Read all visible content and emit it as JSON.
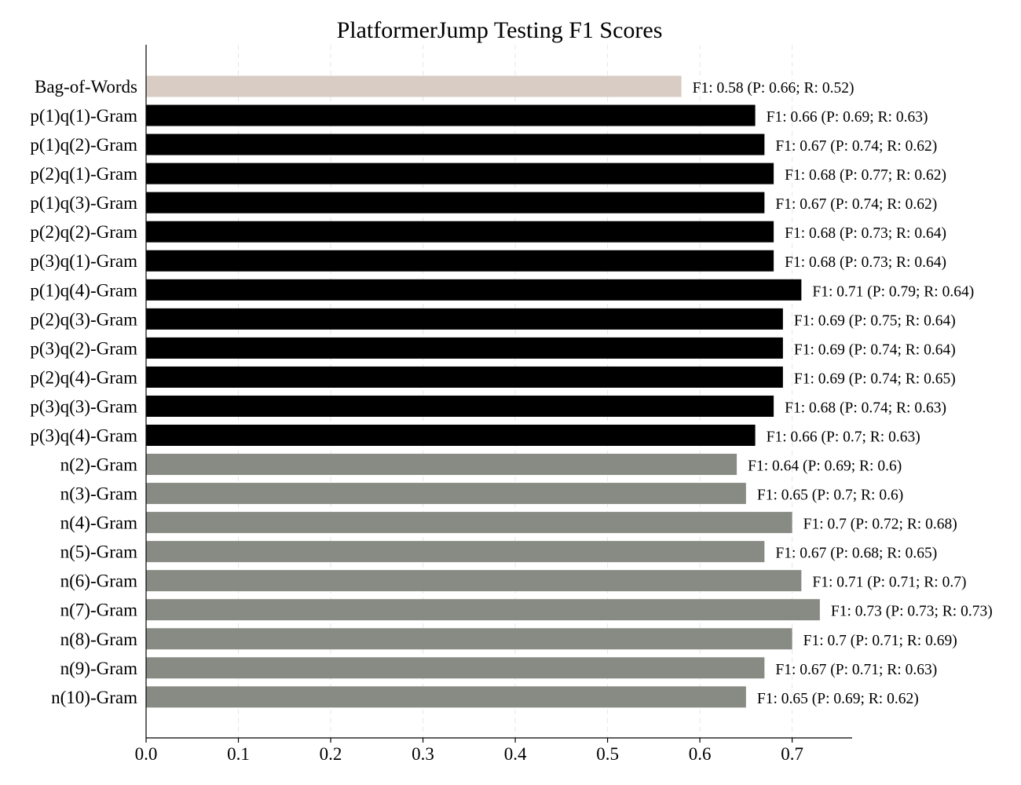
{
  "chart_data": {
    "type": "bar",
    "orientation": "horizontal",
    "title": "PlatformerJump Testing F1 Scores",
    "xlabel": "",
    "ylabel": "",
    "xlim": [
      0,
      0.765
    ],
    "xticks": [
      "0.0",
      "0.1",
      "0.2",
      "0.3",
      "0.4",
      "0.5",
      "0.6",
      "0.7"
    ],
    "grid": "vertical dashed",
    "legend": "none",
    "colors": {
      "bag_of_words": "#d8ccc4",
      "pq_gram": "#000000",
      "n_gram": "#878b83"
    },
    "bars": [
      {
        "category": "Bag-of-Words",
        "value": 0.58,
        "group": "bag_of_words",
        "label": "F1: 0.58 (P: 0.66; R: 0.52)"
      },
      {
        "category": "p(1)q(1)-Gram",
        "value": 0.66,
        "group": "pq_gram",
        "label": "F1: 0.66 (P: 0.69; R: 0.63)"
      },
      {
        "category": "p(1)q(2)-Gram",
        "value": 0.67,
        "group": "pq_gram",
        "label": "F1: 0.67 (P: 0.74; R: 0.62)"
      },
      {
        "category": "p(2)q(1)-Gram",
        "value": 0.68,
        "group": "pq_gram",
        "label": "F1: 0.68 (P: 0.77; R: 0.62)"
      },
      {
        "category": "p(1)q(3)-Gram",
        "value": 0.67,
        "group": "pq_gram",
        "label": "F1: 0.67 (P: 0.74; R: 0.62)"
      },
      {
        "category": "p(2)q(2)-Gram",
        "value": 0.68,
        "group": "pq_gram",
        "label": "F1: 0.68 (P: 0.73; R: 0.64)"
      },
      {
        "category": "p(3)q(1)-Gram",
        "value": 0.68,
        "group": "pq_gram",
        "label": "F1: 0.68 (P: 0.73; R: 0.64)"
      },
      {
        "category": "p(1)q(4)-Gram",
        "value": 0.71,
        "group": "pq_gram",
        "label": "F1: 0.71 (P: 0.79; R: 0.64)"
      },
      {
        "category": "p(2)q(3)-Gram",
        "value": 0.69,
        "group": "pq_gram",
        "label": "F1: 0.69 (P: 0.75; R: 0.64)"
      },
      {
        "category": "p(3)q(2)-Gram",
        "value": 0.69,
        "group": "pq_gram",
        "label": "F1: 0.69 (P: 0.74; R: 0.64)"
      },
      {
        "category": "p(2)q(4)-Gram",
        "value": 0.69,
        "group": "pq_gram",
        "label": "F1: 0.69 (P: 0.74; R: 0.65)"
      },
      {
        "category": "p(3)q(3)-Gram",
        "value": 0.68,
        "group": "pq_gram",
        "label": "F1: 0.68 (P: 0.74; R: 0.63)"
      },
      {
        "category": "p(3)q(4)-Gram",
        "value": 0.66,
        "group": "pq_gram",
        "label": "F1: 0.66 (P: 0.7; R: 0.63)"
      },
      {
        "category": "n(2)-Gram",
        "value": 0.64,
        "group": "n_gram",
        "label": "F1: 0.64 (P: 0.69; R: 0.6)"
      },
      {
        "category": "n(3)-Gram",
        "value": 0.65,
        "group": "n_gram",
        "label": "F1: 0.65 (P: 0.7; R: 0.6)"
      },
      {
        "category": "n(4)-Gram",
        "value": 0.7,
        "group": "n_gram",
        "label": "F1: 0.7 (P: 0.72; R: 0.68)"
      },
      {
        "category": "n(5)-Gram",
        "value": 0.67,
        "group": "n_gram",
        "label": "F1: 0.67 (P: 0.68; R: 0.65)"
      },
      {
        "category": "n(6)-Gram",
        "value": 0.71,
        "group": "n_gram",
        "label": "F1: 0.71 (P: 0.71; R: 0.7)"
      },
      {
        "category": "n(7)-Gram",
        "value": 0.73,
        "group": "n_gram",
        "label": "F1: 0.73 (P: 0.73; R: 0.73)"
      },
      {
        "category": "n(8)-Gram",
        "value": 0.7,
        "group": "n_gram",
        "label": "F1: 0.7 (P: 0.71; R: 0.69)"
      },
      {
        "category": "n(9)-Gram",
        "value": 0.67,
        "group": "n_gram",
        "label": "F1: 0.67 (P: 0.71; R: 0.63)"
      },
      {
        "category": "n(10)-Gram",
        "value": 0.65,
        "group": "n_gram",
        "label": "F1: 0.65 (P: 0.69; R: 0.62)"
      }
    ]
  }
}
